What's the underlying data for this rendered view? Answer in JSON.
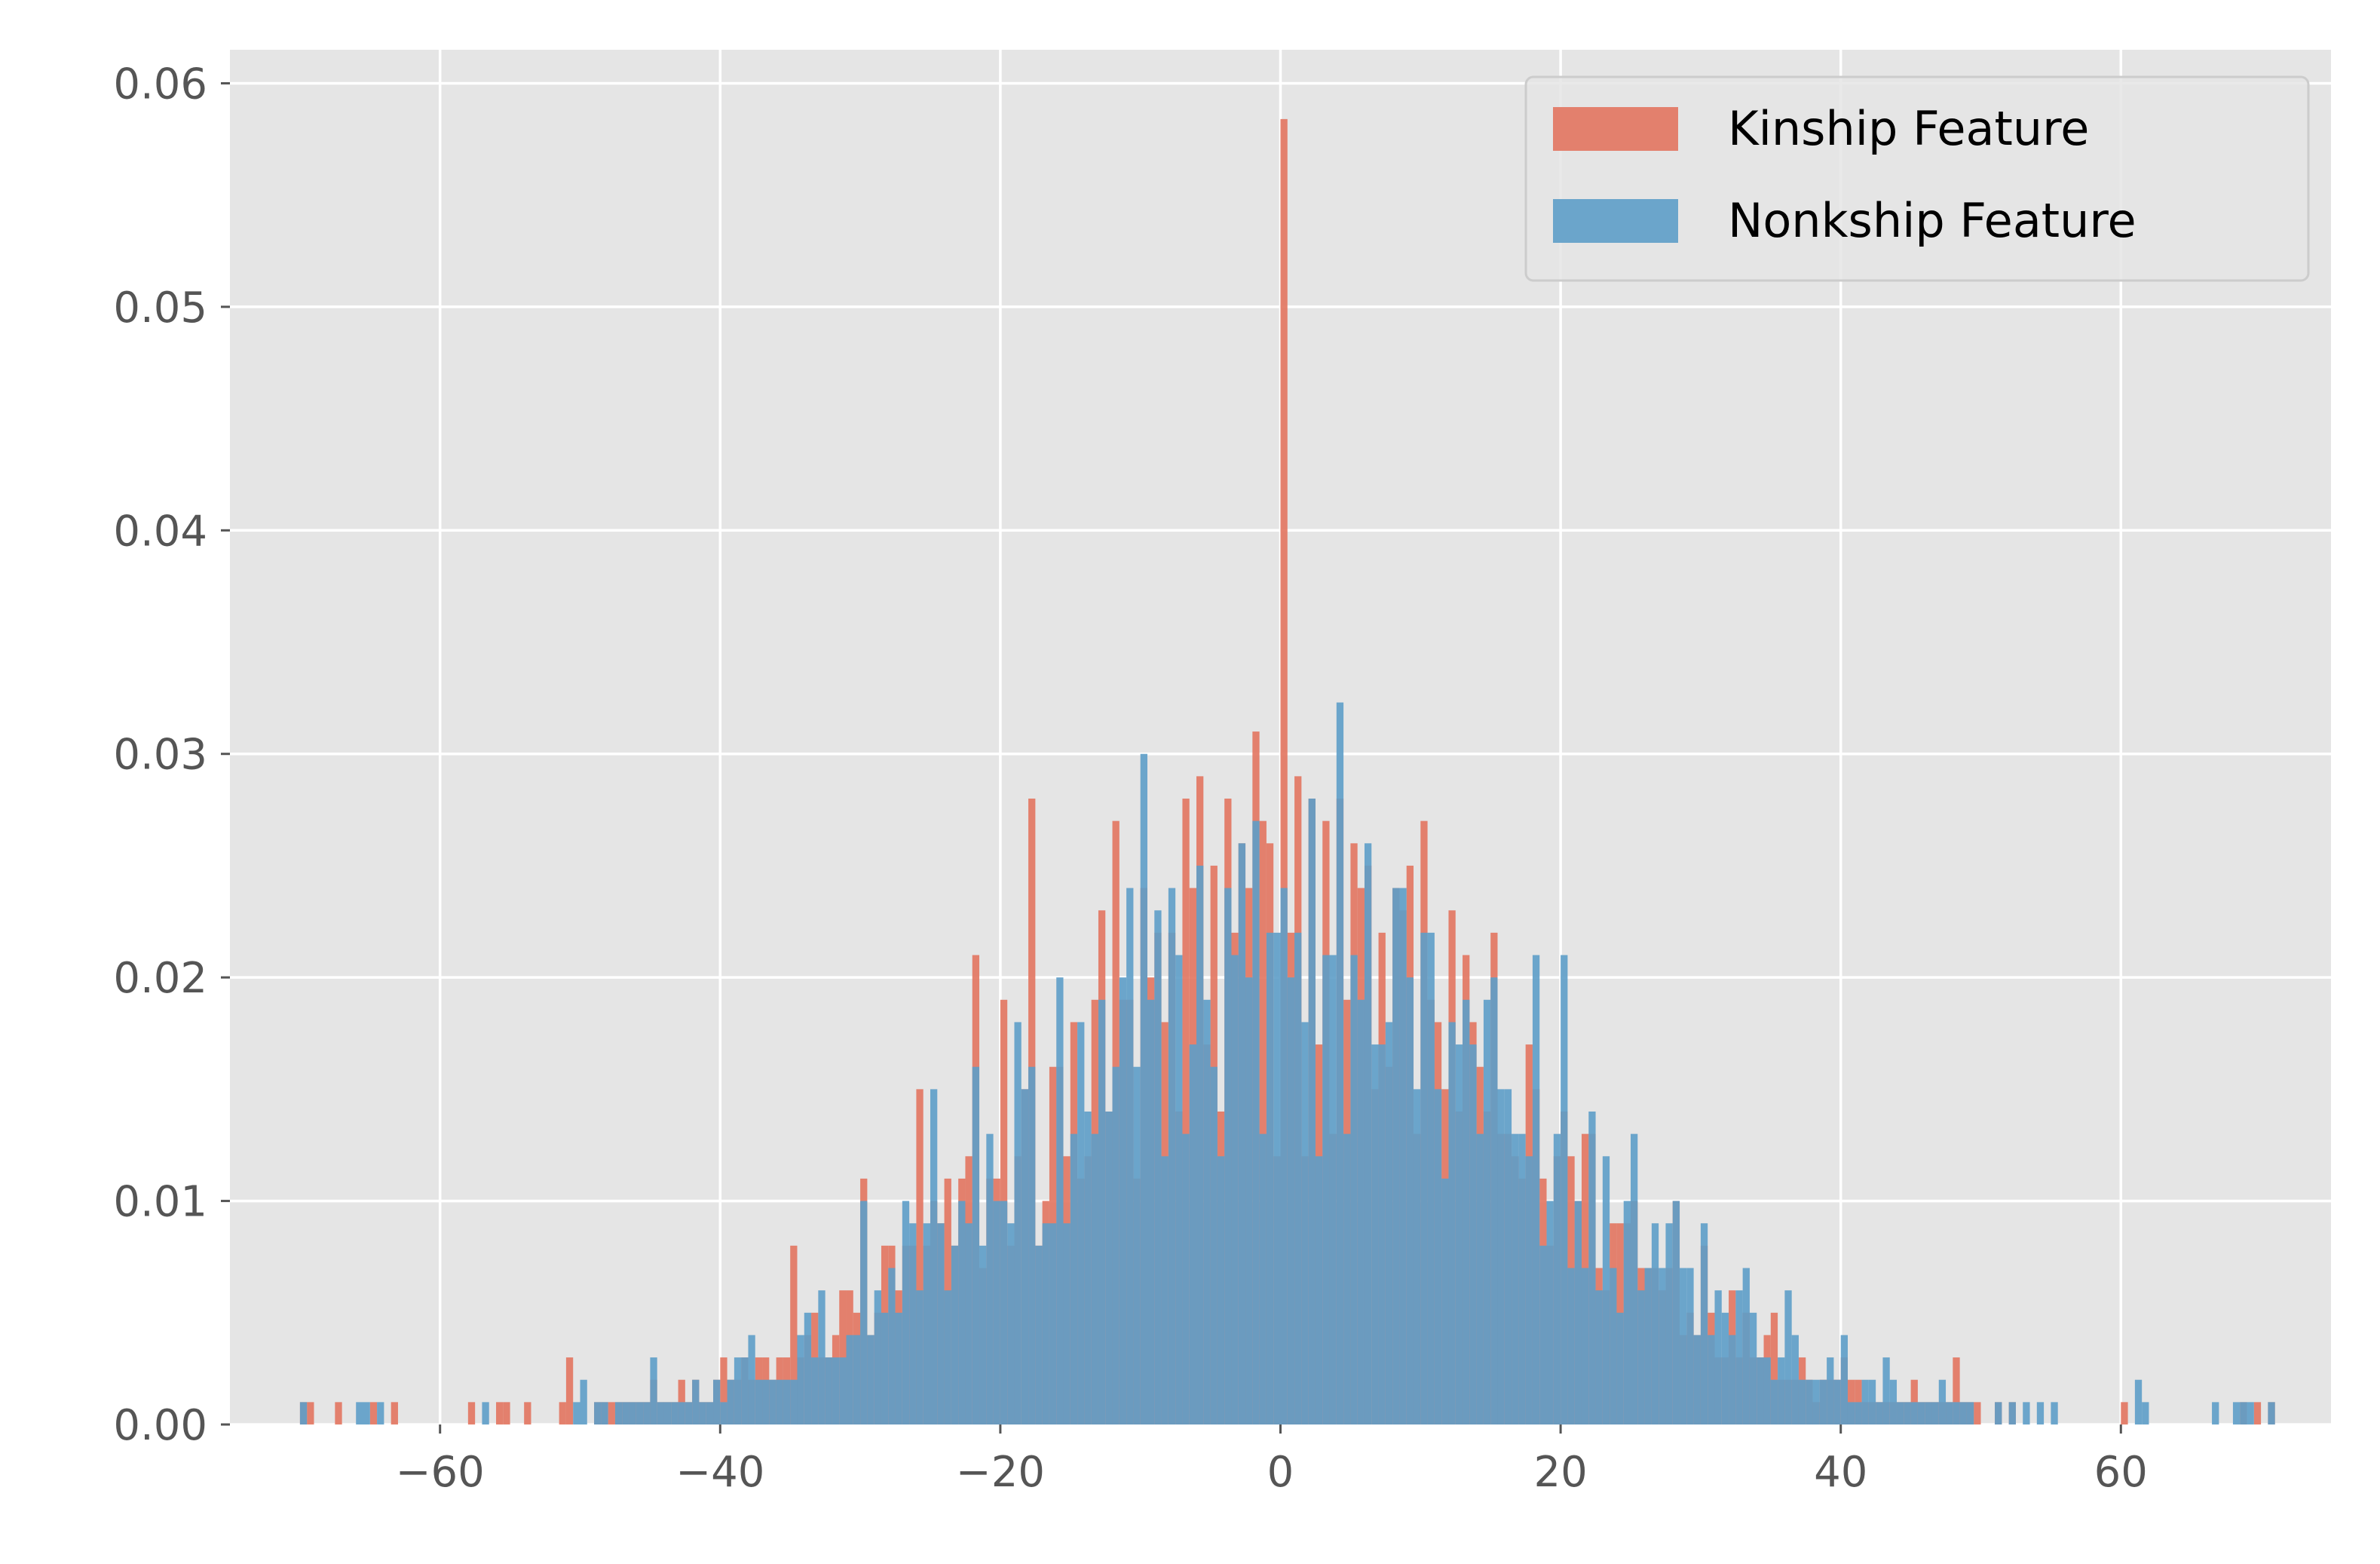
{
  "chart_data": {
    "type": "bar",
    "style": "overlaid-histogram",
    "title": "",
    "xlabel": "",
    "ylabel": "",
    "xlim": [
      -75,
      75
    ],
    "ylim": [
      0,
      0.0615
    ],
    "grid": true,
    "legend_position": "top-right",
    "x_ticks": [
      {
        "value": -60,
        "label": "−60"
      },
      {
        "value": -40,
        "label": "−40"
      },
      {
        "value": -20,
        "label": "−20"
      },
      {
        "value": 0,
        "label": "0"
      },
      {
        "value": 20,
        "label": "20"
      },
      {
        "value": 40,
        "label": "40"
      },
      {
        "value": 60,
        "label": "60"
      }
    ],
    "y_ticks": [
      {
        "value": 0.0,
        "label": "0.00"
      },
      {
        "value": 0.01,
        "label": "0.01"
      },
      {
        "value": 0.02,
        "label": "0.02"
      },
      {
        "value": 0.03,
        "label": "0.03"
      },
      {
        "value": 0.04,
        "label": "0.04"
      },
      {
        "value": 0.05,
        "label": "0.05"
      },
      {
        "value": 0.06,
        "label": "0.06"
      }
    ],
    "bin_width": 0.5,
    "series": [
      {
        "name": "Kinship Feature",
        "color": "#e2745f",
        "opacity": 0.9,
        "peaks": [
          [
            -58,
            0.001
          ],
          [
            -51,
            0.003
          ],
          [
            -45,
            0.002
          ],
          [
            -40,
            0.003
          ],
          [
            -35,
            0.008
          ],
          [
            -30,
            0.011
          ],
          [
            -26,
            0.015
          ],
          [
            -22,
            0.021
          ],
          [
            -20,
            0.019
          ],
          [
            -18,
            0.028
          ],
          [
            -15,
            0.018
          ],
          [
            -13,
            0.023
          ],
          [
            -12,
            0.027
          ],
          [
            -10,
            0.024
          ],
          [
            -8,
            0.022
          ],
          [
            -7,
            0.028
          ],
          [
            -6,
            0.029
          ],
          [
            -5,
            0.025
          ],
          [
            -4,
            0.028
          ],
          [
            -3,
            0.026
          ],
          [
            -2,
            0.031
          ],
          [
            -1,
            0.026
          ],
          [
            0,
            0.0584
          ],
          [
            1,
            0.029
          ],
          [
            2,
            0.028
          ],
          [
            3,
            0.027
          ],
          [
            4,
            0.028
          ],
          [
            5,
            0.026
          ],
          [
            7,
            0.022
          ],
          [
            9,
            0.025
          ],
          [
            10,
            0.027
          ],
          [
            12,
            0.023
          ],
          [
            15,
            0.022
          ],
          [
            18,
            0.015
          ],
          [
            20,
            0.014
          ],
          [
            22,
            0.013
          ],
          [
            25,
            0.01
          ],
          [
            28,
            0.01
          ],
          [
            30,
            0.008
          ],
          [
            35,
            0.005
          ],
          [
            40,
            0.003
          ],
          [
            45,
            0.002
          ],
          [
            48,
            0.003
          ],
          [
            52,
            0.001
          ]
        ]
      },
      {
        "name": "Nonkship Feature",
        "color": "#5d9dc8",
        "opacity": 0.9,
        "peaks": [
          [
            -66,
            0.001
          ],
          [
            -50,
            0.002
          ],
          [
            -45,
            0.003
          ],
          [
            -38,
            0.004
          ],
          [
            -33,
            0.006
          ],
          [
            -30,
            0.01
          ],
          [
            -27,
            0.01
          ],
          [
            -25,
            0.015
          ],
          [
            -22,
            0.016
          ],
          [
            -19,
            0.018
          ],
          [
            -16,
            0.02
          ],
          [
            -13,
            0.019
          ],
          [
            -11,
            0.024
          ],
          [
            -10,
            0.03
          ],
          [
            -8,
            0.024
          ],
          [
            -6,
            0.025
          ],
          [
            -4,
            0.024
          ],
          [
            -2,
            0.027
          ],
          [
            0,
            0.024
          ],
          [
            2,
            0.028
          ],
          [
            4,
            0.0323
          ],
          [
            6,
            0.026
          ],
          [
            8,
            0.024
          ],
          [
            10,
            0.022
          ],
          [
            12,
            0.018
          ],
          [
            15,
            0.02
          ],
          [
            18,
            0.021
          ],
          [
            20,
            0.021
          ],
          [
            22,
            0.014
          ],
          [
            25,
            0.013
          ],
          [
            28,
            0.01
          ],
          [
            30,
            0.009
          ],
          [
            33,
            0.007
          ],
          [
            36,
            0.006
          ],
          [
            40,
            0.004
          ],
          [
            43,
            0.003
          ],
          [
            47,
            0.002
          ],
          [
            55,
            0.001
          ],
          [
            61,
            0.002
          ],
          [
            69,
            0.001
          ]
        ]
      }
    ]
  }
}
